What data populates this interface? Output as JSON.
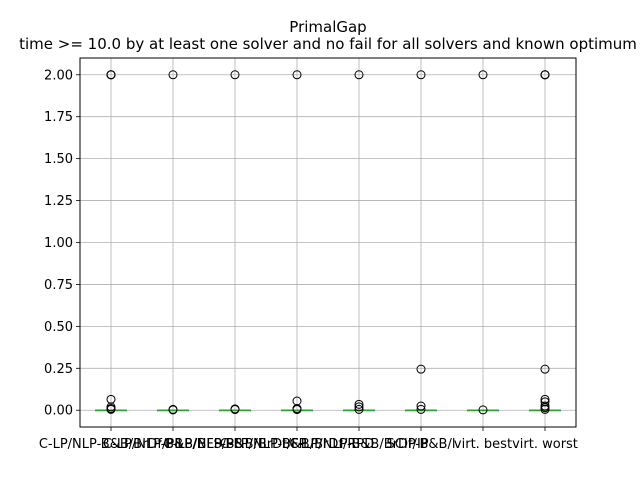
{
  "chart_data": {
    "type": "box",
    "title": "PrimalGap",
    "subtitle": "time >= 10.0 by at least one solver and no fail for all solvers and known optimum",
    "xlabel": "",
    "ylabel": "",
    "ylim": [
      -0.1,
      2.1
    ],
    "yticks": [
      0.0,
      0.25,
      0.5,
      0.75,
      1.0,
      1.25,
      1.5,
      1.75,
      2.0
    ],
    "ytick_labels": [
      "0.00",
      "0.25",
      "0.50",
      "0.75",
      "1.00",
      "1.25",
      "1.50",
      "1.75",
      "2.00"
    ],
    "grid": true,
    "colors": {
      "box": "#1f77b4",
      "median": "#2ca02c",
      "grid": "#b0b0b0",
      "flier": "#000000"
    },
    "categories": [
      "C-LP/NLP-B&B/BrDf/PB",
      "C-LP/NLP-B&B/BFS/PB",
      "C-LP/NLP-B&B/BrDf/FP",
      "C-LP/NLP-B&B/BrDf/RPD",
      "C-LP/NLP-B&B/BrDf/IP",
      "SCIP-B&B/l",
      "virt. best",
      "virt. worst"
    ],
    "boxes": [
      {
        "q1": 0.0,
        "median": 0.0,
        "q3": 0.0,
        "whislo": 0.0,
        "whishi": 0.0,
        "fliers": [
          2.0,
          2.0,
          2.0,
          0.065,
          0.02,
          0.01,
          0.005
        ]
      },
      {
        "q1": 0.0,
        "median": 0.0,
        "q3": 0.0,
        "whislo": 0.0,
        "whishi": 0.0,
        "fliers": [
          2.0,
          0.005,
          0.002
        ]
      },
      {
        "q1": 0.0,
        "median": 0.0,
        "q3": 0.0,
        "whislo": 0.0,
        "whishi": 0.0,
        "fliers": [
          2.0,
          0.008,
          0.004
        ]
      },
      {
        "q1": 0.0,
        "median": 0.0,
        "q3": 0.0,
        "whislo": 0.0,
        "whishi": 0.0,
        "fliers": [
          2.0,
          0.055,
          0.01,
          0.004
        ]
      },
      {
        "q1": 0.0,
        "median": 0.0,
        "q3": 0.0,
        "whislo": 0.0,
        "whishi": 0.0,
        "fliers": [
          2.0,
          0.035,
          0.02,
          0.005
        ]
      },
      {
        "q1": 0.0,
        "median": 0.0,
        "q3": 0.0,
        "whislo": 0.0,
        "whishi": 0.0,
        "fliers": [
          2.0,
          0.245,
          0.025,
          0.005
        ]
      },
      {
        "q1": 0.0,
        "median": 0.0,
        "q3": 0.0,
        "whislo": 0.0,
        "whishi": 0.0,
        "fliers": [
          2.0,
          0.002
        ]
      },
      {
        "q1": 0.0,
        "median": 0.0,
        "q3": 0.0,
        "whislo": 0.0,
        "whishi": 0.0,
        "fliers": [
          2.0,
          2.0,
          2.0,
          0.245,
          0.065,
          0.05,
          0.025,
          0.015,
          0.005
        ]
      }
    ]
  }
}
